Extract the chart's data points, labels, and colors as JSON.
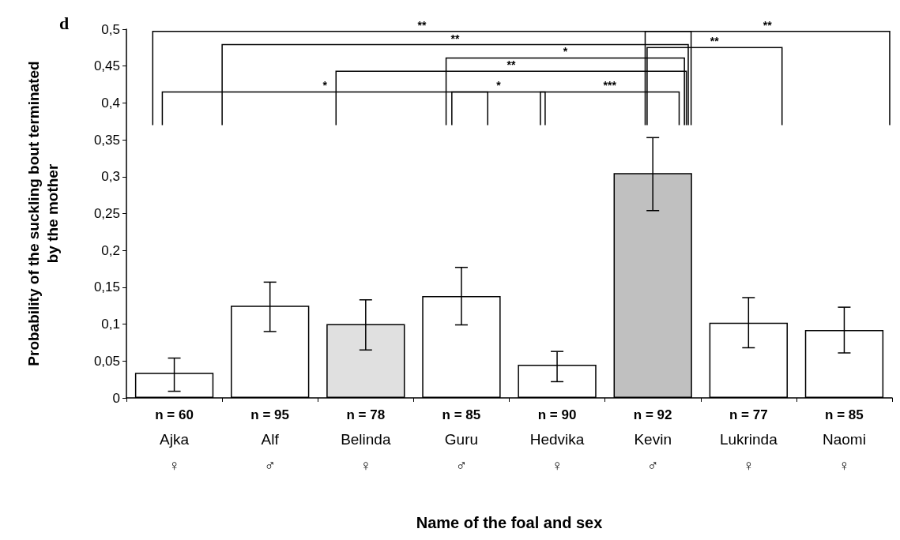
{
  "chart_data": {
    "type": "bar",
    "xlabel": "Name of the foal and sex",
    "ylabel": "Probability of the suckling bout terminated\nby the mother",
    "categories": [
      "n = 60\nAjka\n♀",
      "n = 95\nAlf\n♂",
      "n = 78\nBelinda\n♀",
      "n = 85\nGuru\n♂",
      "n = 90\nHedvika\n♀",
      "n = 92\nKevin\n♂",
      "n = 77\nLukrinda\n♀",
      "n = 85\nNaomi\n♀"
    ],
    "values": [
      0.034,
      0.125,
      0.1,
      0.138,
      0.045,
      0.305,
      0.102,
      0.092
    ],
    "errors": [
      [
        0.009,
        0.054
      ],
      [
        0.09,
        0.157
      ],
      [
        0.065,
        0.133
      ],
      [
        0.099,
        0.177
      ],
      [
        0.022,
        0.063
      ],
      [
        0.254,
        0.353
      ],
      [
        0.068,
        0.136
      ],
      [
        0.061,
        0.123
      ]
    ],
    "colors": [
      "#ffffff",
      "#ffffff",
      "#e0e0e0",
      "#ffffff",
      "#ffffff",
      "#c0c0c0",
      "#ffffff",
      "#ffffff"
    ],
    "ylim": [
      0,
      0.5
    ],
    "yticks": [
      0,
      {
        "value": 0.05,
        "label": "0,05"
      },
      {
        "value": 0.1,
        "label": "0,1"
      },
      {
        "value": 0.15,
        "label": "0,15"
      },
      {
        "value": 0.2,
        "label": "0,2"
      },
      {
        "value": 0.25,
        "label": "0,25"
      },
      {
        "value": 0.3,
        "label": "0,3"
      },
      {
        "value": 0.35,
        "label": "0,35"
      },
      {
        "value": 0.4,
        "label": "0,4"
      },
      {
        "value": 0.45,
        "label": "0,45"
      },
      {
        "value": 0.5,
        "label": "0,5"
      }
    ],
    "grid": false,
    "annotations": [
      "d",
      "**",
      "**",
      "*",
      "**",
      "*",
      "*",
      "***",
      "**",
      "**"
    ]
  }
}
